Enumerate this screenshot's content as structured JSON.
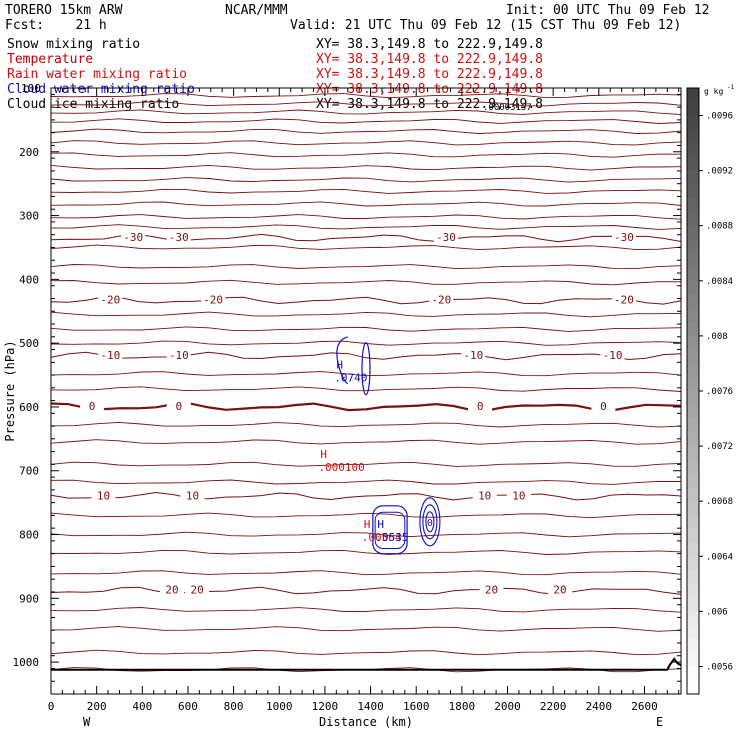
{
  "header": {
    "model": "TORERO  15km ARW",
    "institution": "NCAR/MMM",
    "init": "Init: 00 UTC Thu 09 Feb 12",
    "fcst": "Fcst:    21 h",
    "valid": "Valid: 21 UTC Thu 09 Feb 12 (15 CST Thu 09 Feb 12)"
  },
  "fields": [
    {
      "name": "Snow mixing ratio",
      "xy": "XY=  38.3,149.8 to 222.9,149.8",
      "color": "#000000"
    },
    {
      "name": "Temperature",
      "xy": "XY=  38.3,149.8 to 222.9,149.8",
      "color": "#c00000"
    },
    {
      "name": "Rain water mixing ratio",
      "xy": "XY=  38.3,149.8 to 222.9,149.8",
      "color": "#d01010"
    },
    {
      "name": "Cloud water mixing ratio",
      "xy": "XY=  38.3,149.8 to 222.9,149.8",
      "color": "#1010c0"
    },
    {
      "name": "Cloud ice mixing ratio",
      "xy": "XY=  38.3,149.8 to 222.9,149.8",
      "color": "#000000"
    }
  ],
  "overlap_labels": {
    "y_top_tick": "100",
    "ice_value": ".00003157"
  },
  "chart_data": {
    "type": "contour-cross-section",
    "xlabel": "Distance (km)",
    "ylabel": "Pressure (hPa)",
    "x_range": [
      0,
      2760
    ],
    "y_range": [
      100,
      1050
    ],
    "x_ticks": [
      0,
      200,
      400,
      600,
      800,
      1000,
      1200,
      1400,
      1600,
      1800,
      2000,
      2200,
      2400,
      2600
    ],
    "y_ticks": [
      200,
      300,
      400,
      500,
      600,
      700,
      800,
      900,
      1000
    ],
    "x_end_labels": {
      "left": "W",
      "right": "E"
    },
    "temperature_contours": [
      {
        "value": -30,
        "pressure": 335,
        "labels": [
          {
            "text": "-30",
            "x": 360
          },
          {
            "text": "-30",
            "x": 560
          },
          {
            "text": "-30",
            "x": 1730
          },
          {
            "text": "-30",
            "x": 2510
          }
        ]
      },
      {
        "value": -20,
        "pressure": 433,
        "labels": [
          {
            "text": "-20",
            "x": 260
          },
          {
            "text": "-20",
            "x": 710
          },
          {
            "text": "-20",
            "x": 1710
          },
          {
            "text": "-20",
            "x": 2510
          }
        ]
      },
      {
        "value": -10,
        "pressure": 520,
        "labels": [
          {
            "text": "-10",
            "x": 260
          },
          {
            "text": "-10",
            "x": 560
          },
          {
            "text": "-10",
            "x": 1850
          },
          {
            "text": "-10",
            "x": 2460
          }
        ]
      },
      {
        "value": 0,
        "pressure": 600,
        "labels": [
          {
            "text": "0",
            "x": 180
          },
          {
            "text": "0",
            "x": 560
          },
          {
            "text": "0",
            "x": 1880
          },
          {
            "text": "0",
            "x": 2420
          }
        ]
      },
      {
        "value": 10,
        "pressure": 740,
        "labels": [
          {
            "text": "10",
            "x": 230
          },
          {
            "text": "10",
            "x": 620
          },
          {
            "text": "10",
            "x": 1900
          },
          {
            "text": "10",
            "x": 2050
          }
        ]
      },
      {
        "value": 20,
        "pressure": 888,
        "labels": [
          {
            "text": "20",
            "x": 530
          },
          {
            "text": "20",
            "x": 640
          },
          {
            "text": "20",
            "x": 1930
          },
          {
            "text": "20",
            "x": 2230
          }
        ]
      }
    ],
    "maxima_labels": [
      {
        "field": "Cloud water mixing ratio",
        "text": "H",
        "value": ".0740",
        "x": 1250,
        "p": 540
      },
      {
        "field": "Rain water mixing ratio",
        "text": "H",
        "value": ".000100",
        "x": 1180,
        "p": 680
      },
      {
        "field": "Rain water mixing ratio",
        "text": "H",
        "value": ".00564",
        "x": 1370,
        "p": 790
      },
      {
        "field": "Cloud water mixing ratio",
        "text": "H",
        "value": ".0535",
        "x": 1430,
        "p": 790
      }
    ],
    "cloud_water_center_label": {
      "text": "0",
      "x": 1660,
      "p": 780
    },
    "colorbar": {
      "unit_text": "g kg",
      "unit_exp": "-1",
      "ticks": [
        ".0096",
        ".0092",
        ".0088",
        ".0084",
        ".008",
        ".0076",
        ".0072",
        ".0068",
        ".0064",
        ".006",
        ".0056"
      ],
      "range": [
        0.0054,
        0.0098
      ],
      "color_dark": "#404040",
      "color_light": "#ffffff"
    }
  }
}
